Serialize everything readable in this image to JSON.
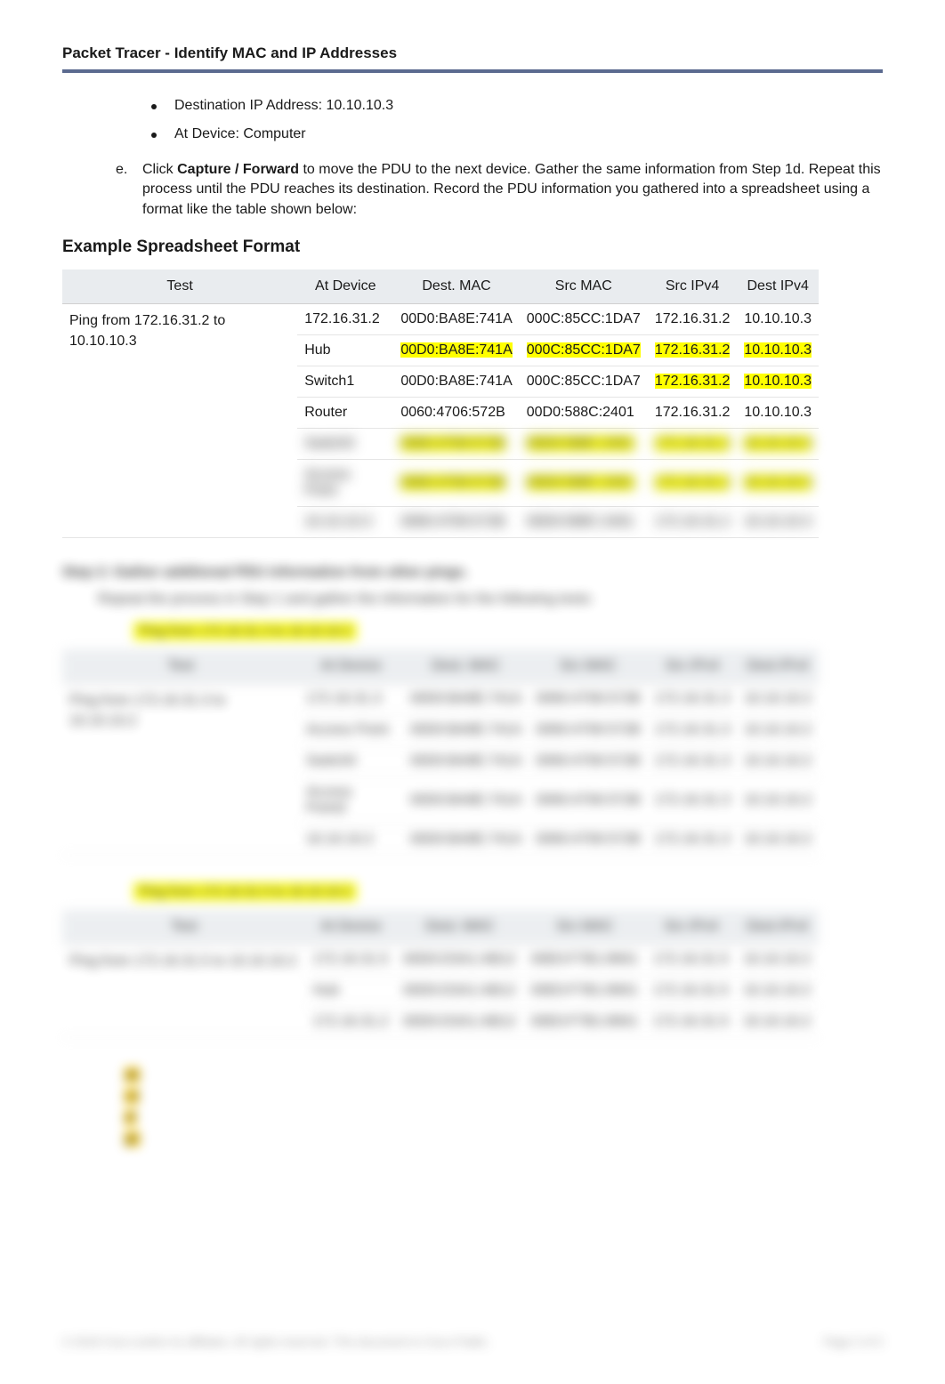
{
  "header": {
    "title": "Packet Tracer - Identify MAC and IP Addresses"
  },
  "bullets": [
    "Destination IP Address: 10.10.10.3",
    "At Device: Computer"
  ],
  "step_e": {
    "letter": "e.",
    "text_prefix": "Click ",
    "bold": "Capture / Forward",
    "text_suffix": " to move the PDU to the next device. Gather the same information from Step 1d. Repeat this process until the PDU reaches its destination. Record the PDU information you gathered into a spreadsheet using a format like the table shown below:"
  },
  "example_heading": "Example Spreadsheet Format",
  "columns": [
    "Test",
    "At Device",
    "Dest. MAC",
    "Src MAC",
    "Src IPv4",
    "Dest IPv4"
  ],
  "table1": {
    "test": "Ping from 172.16.31.2 to 10.10.10.3",
    "rows": [
      {
        "device": "172.16.31.2",
        "dmac": "00D0:BA8E:741A",
        "smac": "000C:85CC:1DA7",
        "sip": "172.16.31.2",
        "dip": "10.10.10.3",
        "hl": []
      },
      {
        "device": "Hub",
        "dmac": "00D0:BA8E:741A",
        "smac": "000C:85CC:1DA7",
        "sip": "172.16.31.2",
        "dip": "10.10.10.3",
        "hl": [
          "dmac",
          "smac",
          "sip",
          "dip"
        ]
      },
      {
        "device": "Switch1",
        "dmac": "00D0:BA8E:741A",
        "smac": "000C:85CC:1DA7",
        "sip": "172.16.31.2",
        "dip": "10.10.10.3",
        "hl": [
          "sip",
          "dip"
        ]
      },
      {
        "device": "Router",
        "dmac": "0060:4706:572B",
        "smac": "00D0:588C:2401",
        "sip": "172.16.31.2",
        "dip": "10.10.10.3",
        "hl": []
      },
      {
        "device": "Switch0",
        "dmac": "0060:4706:572B",
        "smac": "00D0:588C:2401",
        "sip": "172.16.31.2",
        "dip": "10.10.10.3",
        "hl": [
          "dmac",
          "smac",
          "sip",
          "dip"
        ],
        "blur": true
      },
      {
        "device": "Access Point",
        "dmac": "0060:4706:572B",
        "smac": "00D0:588C:2401",
        "sip": "172.16.31.2",
        "dip": "10.10.10.3",
        "hl": [
          "dmac",
          "smac",
          "sip",
          "dip"
        ],
        "blur": true
      },
      {
        "device": "10.10.10.3",
        "dmac": "0060:4706:572B",
        "smac": "00D0:588C:2401",
        "sip": "172.16.31.2",
        "dip": "10.10.10.3",
        "hl": [],
        "blur": true
      }
    ]
  },
  "step2_heading": "Step 2:   Gather additional PDU information from other pings.",
  "step2_intro": "Repeat the process in Step 1 and gather the information for the following tests:",
  "ping2_label": "Ping from 172.16.31.3 to 10.10.10.2",
  "table2": {
    "test": "Ping from 172.16.31.3 to 10.10.10.2",
    "rows": [
      {
        "device": "172.16.31.3",
        "dmac": "00D0:BA8E:741A",
        "smac": "0060:4706:572B",
        "sip": "172.16.31.3",
        "dip": "10.10.10.2"
      },
      {
        "device": "Access Point",
        "dmac": "00D0:BA8E:741A",
        "smac": "0060:4706:572B",
        "sip": "172.16.31.3",
        "dip": "10.10.10.2"
      },
      {
        "device": "Switch0",
        "dmac": "00D0:BA8E:741A",
        "smac": "0060:4706:572B",
        "sip": "172.16.31.3",
        "dip": "10.10.10.2"
      },
      {
        "device": "Access Point2",
        "dmac": "00D0:BA8E:741A",
        "smac": "0060:4706:572B",
        "sip": "172.16.31.3",
        "dip": "10.10.10.2"
      },
      {
        "device": "10.10.10.2",
        "dmac": "00D0:BA8E:741A",
        "smac": "0060:4706:572B",
        "sip": "172.16.31.3",
        "dip": "10.10.10.2"
      }
    ]
  },
  "ping3_label": "Ping from 172.16.31.5 to 10.10.10.2",
  "table3": {
    "test": "Ping from 172.16.31.5 to 10.10.10.2",
    "rows": [
      {
        "device": "172.16.31.5",
        "dmac": "00D0:D3A1:AB12",
        "smac": "00E0:F7B1:8901",
        "sip": "172.16.31.5",
        "dip": "10.10.10.2"
      },
      {
        "device": "Hub",
        "dmac": "00D0:D3A1:AB12",
        "smac": "00E0:F7B1:8901",
        "sip": "172.16.31.5",
        "dip": "10.10.10.2"
      },
      {
        "device": "172.16.31.2",
        "dmac": "00D0:D3A1:AB12",
        "smac": "00E0:F7B1:8901",
        "sip": "172.16.31.5",
        "dip": "10.10.10.2"
      }
    ]
  },
  "notes": [
    "ab",
    "cd",
    "ef",
    "gh"
  ],
  "footer": {
    "left": "© 2018 Cisco and/or its affiliates. All rights reserved. This document is Cisco Public.",
    "right": "Page 2 of 3"
  },
  "colors": {
    "header_line": "#5b6a8f",
    "th_bg": "#e9ecef",
    "highlight": "#ffff00",
    "highlight_orange": "#ffcc00"
  }
}
